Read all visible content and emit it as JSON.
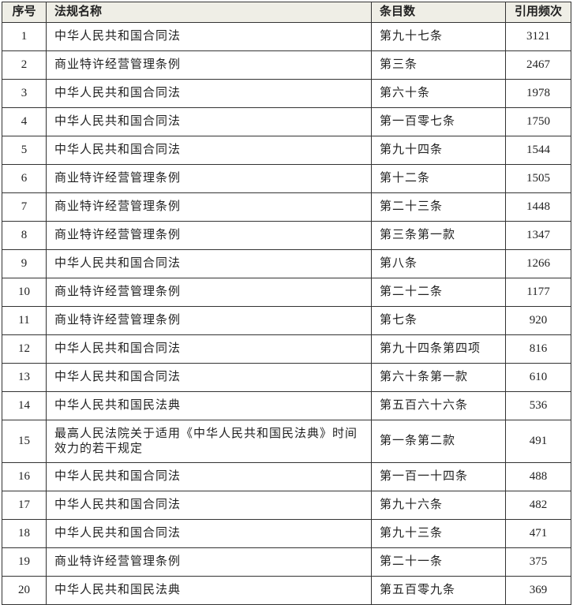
{
  "table": {
    "headers": [
      "序号",
      "法规名称",
      "条目数",
      "引用频次"
    ],
    "rows": [
      [
        "1",
        "中华人民共和国合同法",
        "第九十七条",
        "3121"
      ],
      [
        "2",
        "商业特许经营管理条例",
        "第三条",
        "2467"
      ],
      [
        "3",
        "中华人民共和国合同法",
        "第六十条",
        "1978"
      ],
      [
        "4",
        "中华人民共和国合同法",
        "第一百零七条",
        "1750"
      ],
      [
        "5",
        "中华人民共和国合同法",
        "第九十四条",
        "1544"
      ],
      [
        "6",
        "商业特许经营管理条例",
        "第十二条",
        "1505"
      ],
      [
        "7",
        "商业特许经营管理条例",
        "第二十三条",
        "1448"
      ],
      [
        "8",
        "商业特许经营管理条例",
        "第三条第一款",
        "1347"
      ],
      [
        "9",
        "中华人民共和国合同法",
        "第八条",
        "1266"
      ],
      [
        "10",
        "商业特许经营管理条例",
        "第二十二条",
        "1177"
      ],
      [
        "11",
        "商业特许经营管理条例",
        "第七条",
        "920"
      ],
      [
        "12",
        "中华人民共和国合同法",
        "第九十四条第四项",
        "816"
      ],
      [
        "13",
        "中华人民共和国合同法",
        "第六十条第一款",
        "610"
      ],
      [
        "14",
        "中华人民共和国民法典",
        "第五百六十六条",
        "536"
      ],
      [
        "15",
        "最高人民法院关于适用《中华人民共和国民法典》时间效力的若干规定",
        "第一条第二款",
        "491"
      ],
      [
        "16",
        "中华人民共和国合同法",
        "第一百一十四条",
        "488"
      ],
      [
        "17",
        "中华人民共和国合同法",
        "第九十六条",
        "482"
      ],
      [
        "18",
        "中华人民共和国合同法",
        "第九十三条",
        "471"
      ],
      [
        "19",
        "商业特许经营管理条例",
        "第二十一条",
        "375"
      ],
      [
        "20",
        "中华人民共和国民法典",
        "第五百零九条",
        "369"
      ]
    ]
  },
  "colors": {
    "header_bg": "#efeee6",
    "border": "#333333"
  }
}
